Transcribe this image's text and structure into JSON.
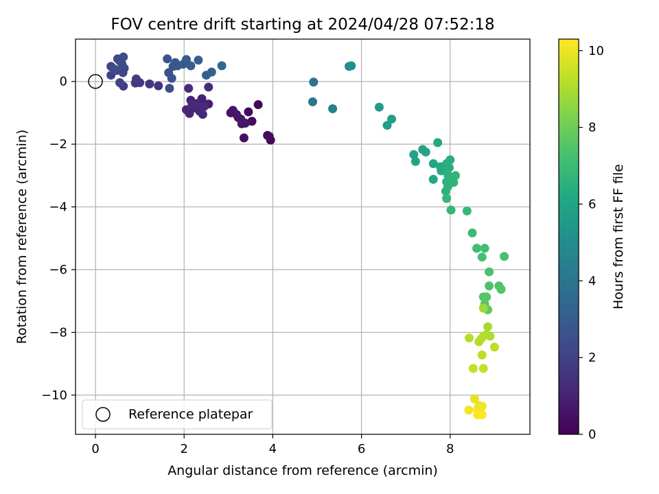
{
  "chart_data": {
    "type": "scatter",
    "title": "FOV centre drift starting at 2024/04/28 07:52:18",
    "xlabel": "Angular distance from reference (arcmin)",
    "ylabel": "Rotation from reference (arcmin)",
    "xlim": [
      -0.45,
      9.8
    ],
    "ylim": [
      -11.25,
      1.35
    ],
    "xticks": [
      0,
      2,
      4,
      6,
      8
    ],
    "yticks": [
      0,
      -2,
      -4,
      -6,
      -8,
      -10
    ],
    "grid": true,
    "colormap": "viridis",
    "colorbar": {
      "label": "Hours from first FF file",
      "range": [
        0,
        10.3
      ],
      "ticks": [
        0,
        2,
        4,
        6,
        8,
        10
      ]
    },
    "legend": {
      "position": "lower-left",
      "entries": [
        "Reference platepar"
      ]
    },
    "reference_point": {
      "x": 0,
      "y": 0,
      "label": "Reference platepar"
    },
    "points": [
      {
        "x": 3.67,
        "y": -0.74,
        "t": 0.2
      },
      {
        "x": 3.45,
        "y": -0.97,
        "t": 0.25
      },
      {
        "x": 3.53,
        "y": -1.27,
        "t": 0.3
      },
      {
        "x": 3.88,
        "y": -1.72,
        "t": 0.28
      },
      {
        "x": 3.95,
        "y": -1.87,
        "t": 0.22
      },
      {
        "x": 3.35,
        "y": -1.8,
        "t": 0.45
      },
      {
        "x": 3.92,
        "y": -1.75,
        "t": 0.32
      },
      {
        "x": 3.1,
        "y": -0.92,
        "t": 0.55
      },
      {
        "x": 3.22,
        "y": -1.15,
        "t": 0.6
      },
      {
        "x": 3.05,
        "y": -1.0,
        "t": 0.5
      },
      {
        "x": 3.3,
        "y": -1.35,
        "t": 0.58
      },
      {
        "x": 3.18,
        "y": -1.05,
        "t": 0.62
      },
      {
        "x": 3.38,
        "y": -1.33,
        "t": 0.65
      },
      {
        "x": 3.28,
        "y": -1.2,
        "t": 0.68
      },
      {
        "x": 2.55,
        "y": -0.72,
        "t": 0.9
      },
      {
        "x": 2.4,
        "y": -0.55,
        "t": 0.95
      },
      {
        "x": 2.15,
        "y": -0.6,
        "t": 1.0
      },
      {
        "x": 2.05,
        "y": -0.9,
        "t": 1.05
      },
      {
        "x": 2.12,
        "y": -1.02,
        "t": 1.1
      },
      {
        "x": 2.25,
        "y": -0.85,
        "t": 1.12
      },
      {
        "x": 2.35,
        "y": -0.95,
        "t": 1.15
      },
      {
        "x": 2.42,
        "y": -1.05,
        "t": 1.18
      },
      {
        "x": 2.3,
        "y": -0.7,
        "t": 1.2
      },
      {
        "x": 2.18,
        "y": -0.75,
        "t": 1.22
      },
      {
        "x": 2.45,
        "y": -0.8,
        "t": 1.25
      },
      {
        "x": 2.1,
        "y": -0.22,
        "t": 1.3
      },
      {
        "x": 2.55,
        "y": -0.18,
        "t": 1.35
      },
      {
        "x": 1.42,
        "y": -0.14,
        "t": 1.5
      },
      {
        "x": 1.22,
        "y": -0.08,
        "t": 1.6
      },
      {
        "x": 1.0,
        "y": -0.04,
        "t": 1.7
      },
      {
        "x": 0.9,
        "y": -0.05,
        "t": 1.75
      },
      {
        "x": 0.92,
        "y": 0.08,
        "t": 1.8
      },
      {
        "x": 0.63,
        "y": -0.15,
        "t": 1.9
      },
      {
        "x": 0.55,
        "y": -0.04,
        "t": 1.95
      },
      {
        "x": 0.35,
        "y": 0.2,
        "t": 2.0
      },
      {
        "x": 0.35,
        "y": 0.48,
        "t": 2.05
      },
      {
        "x": 0.48,
        "y": 0.35,
        "t": 2.1
      },
      {
        "x": 0.55,
        "y": 0.65,
        "t": 2.15
      },
      {
        "x": 0.62,
        "y": 0.28,
        "t": 2.2
      },
      {
        "x": 0.65,
        "y": 0.42,
        "t": 2.25
      },
      {
        "x": 0.5,
        "y": 0.72,
        "t": 2.3
      },
      {
        "x": 0.63,
        "y": 0.78,
        "t": 2.35
      },
      {
        "x": 0.42,
        "y": 0.4,
        "t": 2.4
      },
      {
        "x": 0.6,
        "y": 0.55,
        "t": 2.45
      },
      {
        "x": 1.67,
        "y": -0.22,
        "t": 2.5
      },
      {
        "x": 1.65,
        "y": 0.28,
        "t": 2.55
      },
      {
        "x": 1.72,
        "y": 0.1,
        "t": 2.6
      },
      {
        "x": 1.62,
        "y": 0.72,
        "t": 2.7
      },
      {
        "x": 1.75,
        "y": 0.48,
        "t": 2.75
      },
      {
        "x": 1.8,
        "y": 0.6,
        "t": 2.8
      },
      {
        "x": 1.85,
        "y": 0.5,
        "t": 2.85
      },
      {
        "x": 1.98,
        "y": 0.55,
        "t": 2.9
      },
      {
        "x": 2.05,
        "y": 0.7,
        "t": 2.95
      },
      {
        "x": 2.15,
        "y": 0.5,
        "t": 3.0
      },
      {
        "x": 2.32,
        "y": 0.68,
        "t": 3.1
      },
      {
        "x": 2.5,
        "y": 0.2,
        "t": 3.2
      },
      {
        "x": 2.62,
        "y": 0.3,
        "t": 3.3
      },
      {
        "x": 2.85,
        "y": 0.5,
        "t": 3.4
      },
      {
        "x": 4.92,
        "y": -0.02,
        "t": 4.0
      },
      {
        "x": 4.9,
        "y": -0.65,
        "t": 4.1
      },
      {
        "x": 5.35,
        "y": -0.87,
        "t": 4.4
      },
      {
        "x": 5.72,
        "y": 0.48,
        "t": 5.0
      },
      {
        "x": 5.77,
        "y": 0.5,
        "t": 5.1
      },
      {
        "x": 6.4,
        "y": -0.82,
        "t": 5.6
      },
      {
        "x": 6.58,
        "y": -1.4,
        "t": 5.7
      },
      {
        "x": 6.68,
        "y": -1.2,
        "t": 5.8
      },
      {
        "x": 7.18,
        "y": -2.33,
        "t": 5.9
      },
      {
        "x": 7.22,
        "y": -2.55,
        "t": 5.95
      },
      {
        "x": 7.38,
        "y": -2.17,
        "t": 6.0
      },
      {
        "x": 7.45,
        "y": -2.25,
        "t": 6.05
      },
      {
        "x": 7.62,
        "y": -2.62,
        "t": 6.1
      },
      {
        "x": 7.62,
        "y": -3.12,
        "t": 6.15
      },
      {
        "x": 7.72,
        "y": -1.95,
        "t": 6.2
      },
      {
        "x": 7.78,
        "y": -2.72,
        "t": 6.25
      },
      {
        "x": 7.8,
        "y": -2.85,
        "t": 6.3
      },
      {
        "x": 7.92,
        "y": -2.62,
        "t": 6.35
      },
      {
        "x": 7.98,
        "y": -2.75,
        "t": 6.4
      },
      {
        "x": 8.0,
        "y": -2.5,
        "t": 6.45
      },
      {
        "x": 7.95,
        "y": -2.98,
        "t": 6.5
      },
      {
        "x": 7.92,
        "y": -3.2,
        "t": 6.55
      },
      {
        "x": 7.9,
        "y": -3.5,
        "t": 6.6
      },
      {
        "x": 7.95,
        "y": -3.35,
        "t": 6.62
      },
      {
        "x": 8.02,
        "y": -3.1,
        "t": 6.65
      },
      {
        "x": 8.08,
        "y": -3.22,
        "t": 6.68
      },
      {
        "x": 8.12,
        "y": -3.0,
        "t": 6.7
      },
      {
        "x": 7.92,
        "y": -3.73,
        "t": 6.75
      },
      {
        "x": 8.02,
        "y": -4.1,
        "t": 6.8
      },
      {
        "x": 8.38,
        "y": -4.13,
        "t": 6.9
      },
      {
        "x": 8.5,
        "y": -4.83,
        "t": 7.0
      },
      {
        "x": 8.6,
        "y": -5.32,
        "t": 7.1
      },
      {
        "x": 8.78,
        "y": -5.32,
        "t": 7.15
      },
      {
        "x": 8.72,
        "y": -5.6,
        "t": 7.2
      },
      {
        "x": 9.22,
        "y": -5.58,
        "t": 7.25
      },
      {
        "x": 8.88,
        "y": -6.07,
        "t": 7.3
      },
      {
        "x": 8.88,
        "y": -6.52,
        "t": 7.35
      },
      {
        "x": 9.1,
        "y": -6.52,
        "t": 7.4
      },
      {
        "x": 9.15,
        "y": -6.63,
        "t": 7.45
      },
      {
        "x": 8.75,
        "y": -6.87,
        "t": 7.5
      },
      {
        "x": 8.82,
        "y": -6.87,
        "t": 7.55
      },
      {
        "x": 8.78,
        "y": -7.1,
        "t": 7.6
      },
      {
        "x": 8.85,
        "y": -7.28,
        "t": 7.7
      },
      {
        "x": 8.75,
        "y": -7.23,
        "t": 8.8
      },
      {
        "x": 8.85,
        "y": -7.82,
        "t": 8.9
      },
      {
        "x": 8.82,
        "y": -8.07,
        "t": 9.0
      },
      {
        "x": 8.9,
        "y": -8.12,
        "t": 9.05
      },
      {
        "x": 8.75,
        "y": -8.12,
        "t": 9.1
      },
      {
        "x": 8.65,
        "y": -8.3,
        "t": 9.12
      },
      {
        "x": 8.7,
        "y": -8.2,
        "t": 9.15
      },
      {
        "x": 8.43,
        "y": -8.18,
        "t": 9.2
      },
      {
        "x": 9.0,
        "y": -8.47,
        "t": 9.25
      },
      {
        "x": 8.72,
        "y": -8.72,
        "t": 9.3
      },
      {
        "x": 8.52,
        "y": -9.15,
        "t": 9.35
      },
      {
        "x": 8.75,
        "y": -9.15,
        "t": 9.4
      },
      {
        "x": 8.55,
        "y": -10.12,
        "t": 9.9
      },
      {
        "x": 8.65,
        "y": -10.33,
        "t": 10.0
      },
      {
        "x": 8.72,
        "y": -10.35,
        "t": 10.05
      },
      {
        "x": 8.42,
        "y": -10.48,
        "t": 10.1
      },
      {
        "x": 8.62,
        "y": -10.45,
        "t": 10.15
      },
      {
        "x": 8.68,
        "y": -10.55,
        "t": 10.2
      },
      {
        "x": 8.62,
        "y": -10.63,
        "t": 10.25
      },
      {
        "x": 8.72,
        "y": -10.63,
        "t": 10.28
      }
    ]
  }
}
